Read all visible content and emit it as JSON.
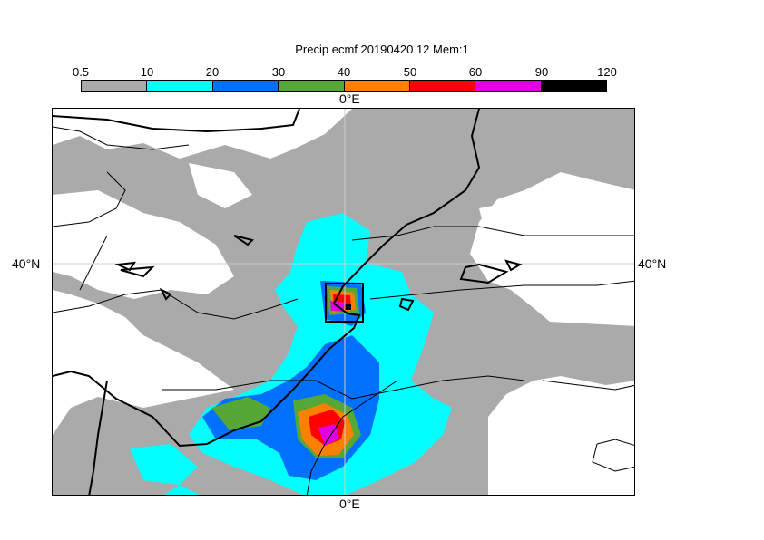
{
  "title": "Precip ecmf 20190420 12 Mem:1",
  "colorbar": {
    "ticks": [
      "0.5",
      "10",
      "20",
      "30",
      "40",
      "50",
      "60",
      "90",
      "120"
    ],
    "colors": [
      "#aaaaaa",
      "#00ffff",
      "#0070ff",
      "#55a838",
      "#ff8000",
      "#ff0000",
      "#e000e0",
      "#000000"
    ]
  },
  "axes": {
    "top_lon": "0°E",
    "bottom_lon": "0°E",
    "left_lat": "40°N",
    "right_lat": "40°N"
  }
}
